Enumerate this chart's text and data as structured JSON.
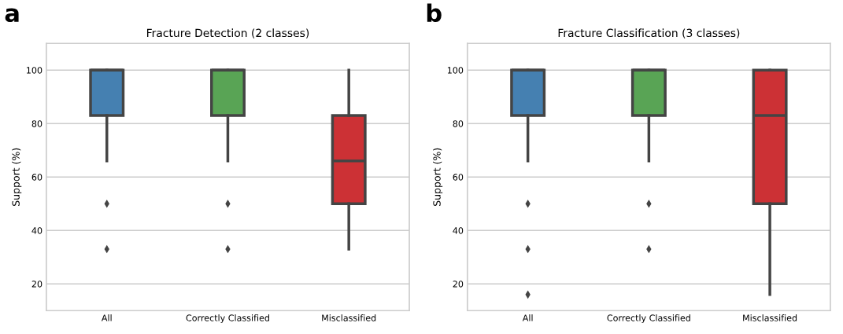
{
  "chart_data": [
    {
      "type": "box",
      "title": "Fracture Detection (2 classes)",
      "ylabel": "Support (%)",
      "categories": [
        "All",
        "Correctly Classified",
        "Misclassified"
      ],
      "colors": [
        "#4580b1",
        "#59a455",
        "#cc3135"
      ],
      "boxes": [
        {
          "low": 66,
          "q1": 83,
          "median": 100,
          "q3": 100,
          "high": 100,
          "outliers": [
            50,
            33
          ]
        },
        {
          "low": 66,
          "q1": 83,
          "median": 100,
          "q3": 100,
          "high": 100,
          "outliers": [
            50,
            33
          ]
        },
        {
          "low": 33,
          "q1": 50,
          "median": 66,
          "q3": 83,
          "high": 100
        }
      ],
      "ylim": [
        10,
        110
      ],
      "yticks": [
        20,
        40,
        60,
        80,
        100
      ],
      "grid": "y",
      "annotations": [
        "a"
      ]
    },
    {
      "type": "box",
      "title": "Fracture Classification (3 classes)",
      "ylabel": "Support (%)",
      "categories": [
        "All",
        "Correctly Classified",
        "Misclassified"
      ],
      "colors": [
        "#4580b1",
        "#59a455",
        "#cc3135"
      ],
      "boxes": [
        {
          "low": 66,
          "q1": 83,
          "median": 100,
          "q3": 100,
          "high": 100,
          "outliers": [
            50,
            33,
            16
          ]
        },
        {
          "low": 66,
          "q1": 83,
          "median": 100,
          "q3": 100,
          "high": 100,
          "outliers": [
            50,
            33
          ]
        },
        {
          "low": 16,
          "q1": 50,
          "median": 83,
          "q3": 100,
          "high": 100
        }
      ],
      "ylim": [
        10,
        110
      ],
      "yticks": [
        20,
        40,
        60,
        80,
        100
      ],
      "grid": "y",
      "annotations": [
        "b"
      ]
    }
  ]
}
